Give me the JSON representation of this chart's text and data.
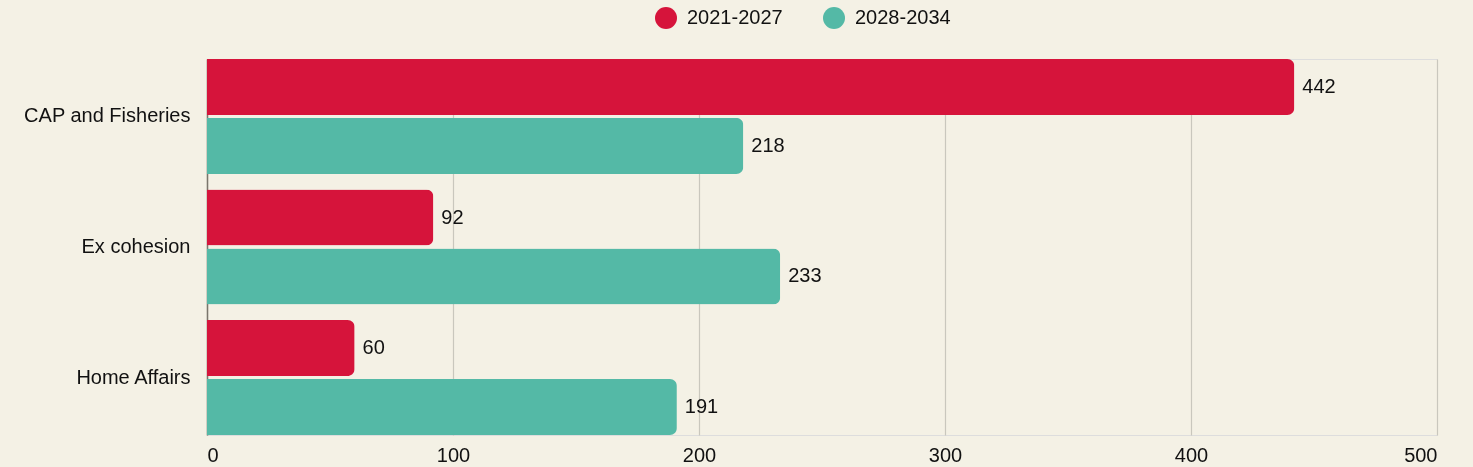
{
  "chart_data": {
    "type": "bar",
    "orientation": "horizontal",
    "categories": [
      "CAP and Fisheries",
      "Ex cohesion",
      "Home Affairs"
    ],
    "series": [
      {
        "name": "2021-2027",
        "color": "#d6143b",
        "values": [
          442,
          92,
          60
        ]
      },
      {
        "name": "2028-2034",
        "color": "#54b9a6",
        "values": [
          218,
          233,
          191
        ]
      }
    ],
    "xlim": [
      0,
      500
    ],
    "xticks": [
      0,
      100,
      200,
      300,
      400,
      500
    ],
    "grid": "x",
    "legend": "top",
    "data_labels": true
  }
}
